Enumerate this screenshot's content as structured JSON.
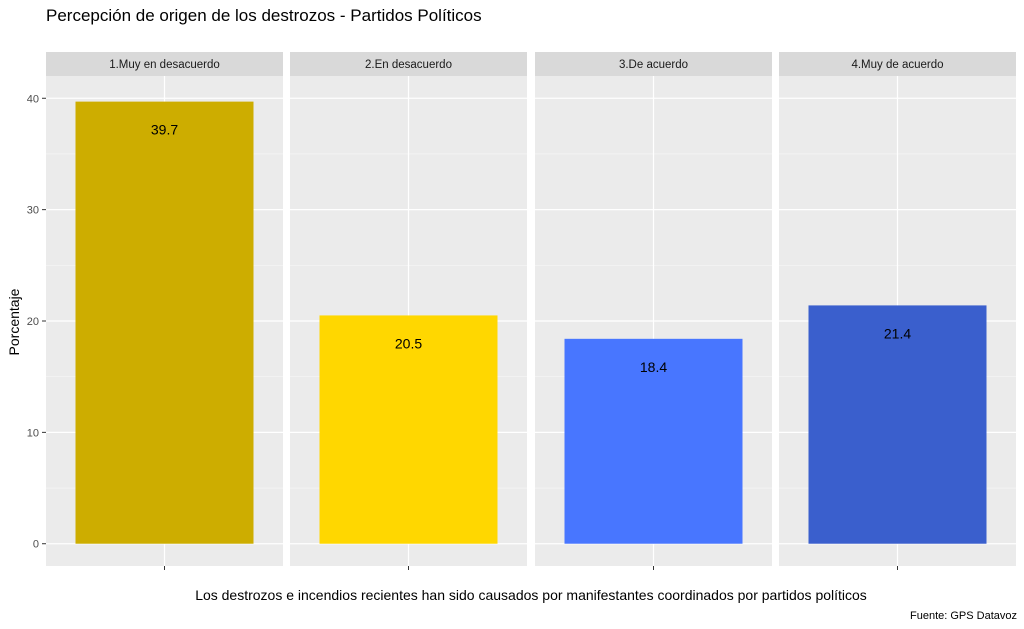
{
  "chart_data": {
    "type": "bar",
    "title": "Percepción de origen de los destrozos - Partidos Políticos",
    "xlabel": "Los destrozos e incendios recientes han sido causados por manifestantes coordinados por partidos políticos",
    "ylabel": "Porcentaje",
    "caption": "Fuente: GPS Datavoz",
    "ylim": [
      -2,
      42
    ],
    "yticks": [
      "0",
      "10",
      "20",
      "30",
      "40"
    ],
    "grid": true,
    "facets": [
      "1.Muy en desacuerdo",
      "2.En desacuerdo",
      "3.De acuerdo",
      "4.Muy de acuerdo"
    ],
    "values": [
      39.7,
      20.5,
      18.4,
      21.4
    ],
    "value_labels": [
      "39.7",
      "20.5",
      "18.4",
      "21.4"
    ],
    "colors": [
      "#CDAD00",
      "#FFD700",
      "#4876FF",
      "#3A5FCD"
    ]
  }
}
